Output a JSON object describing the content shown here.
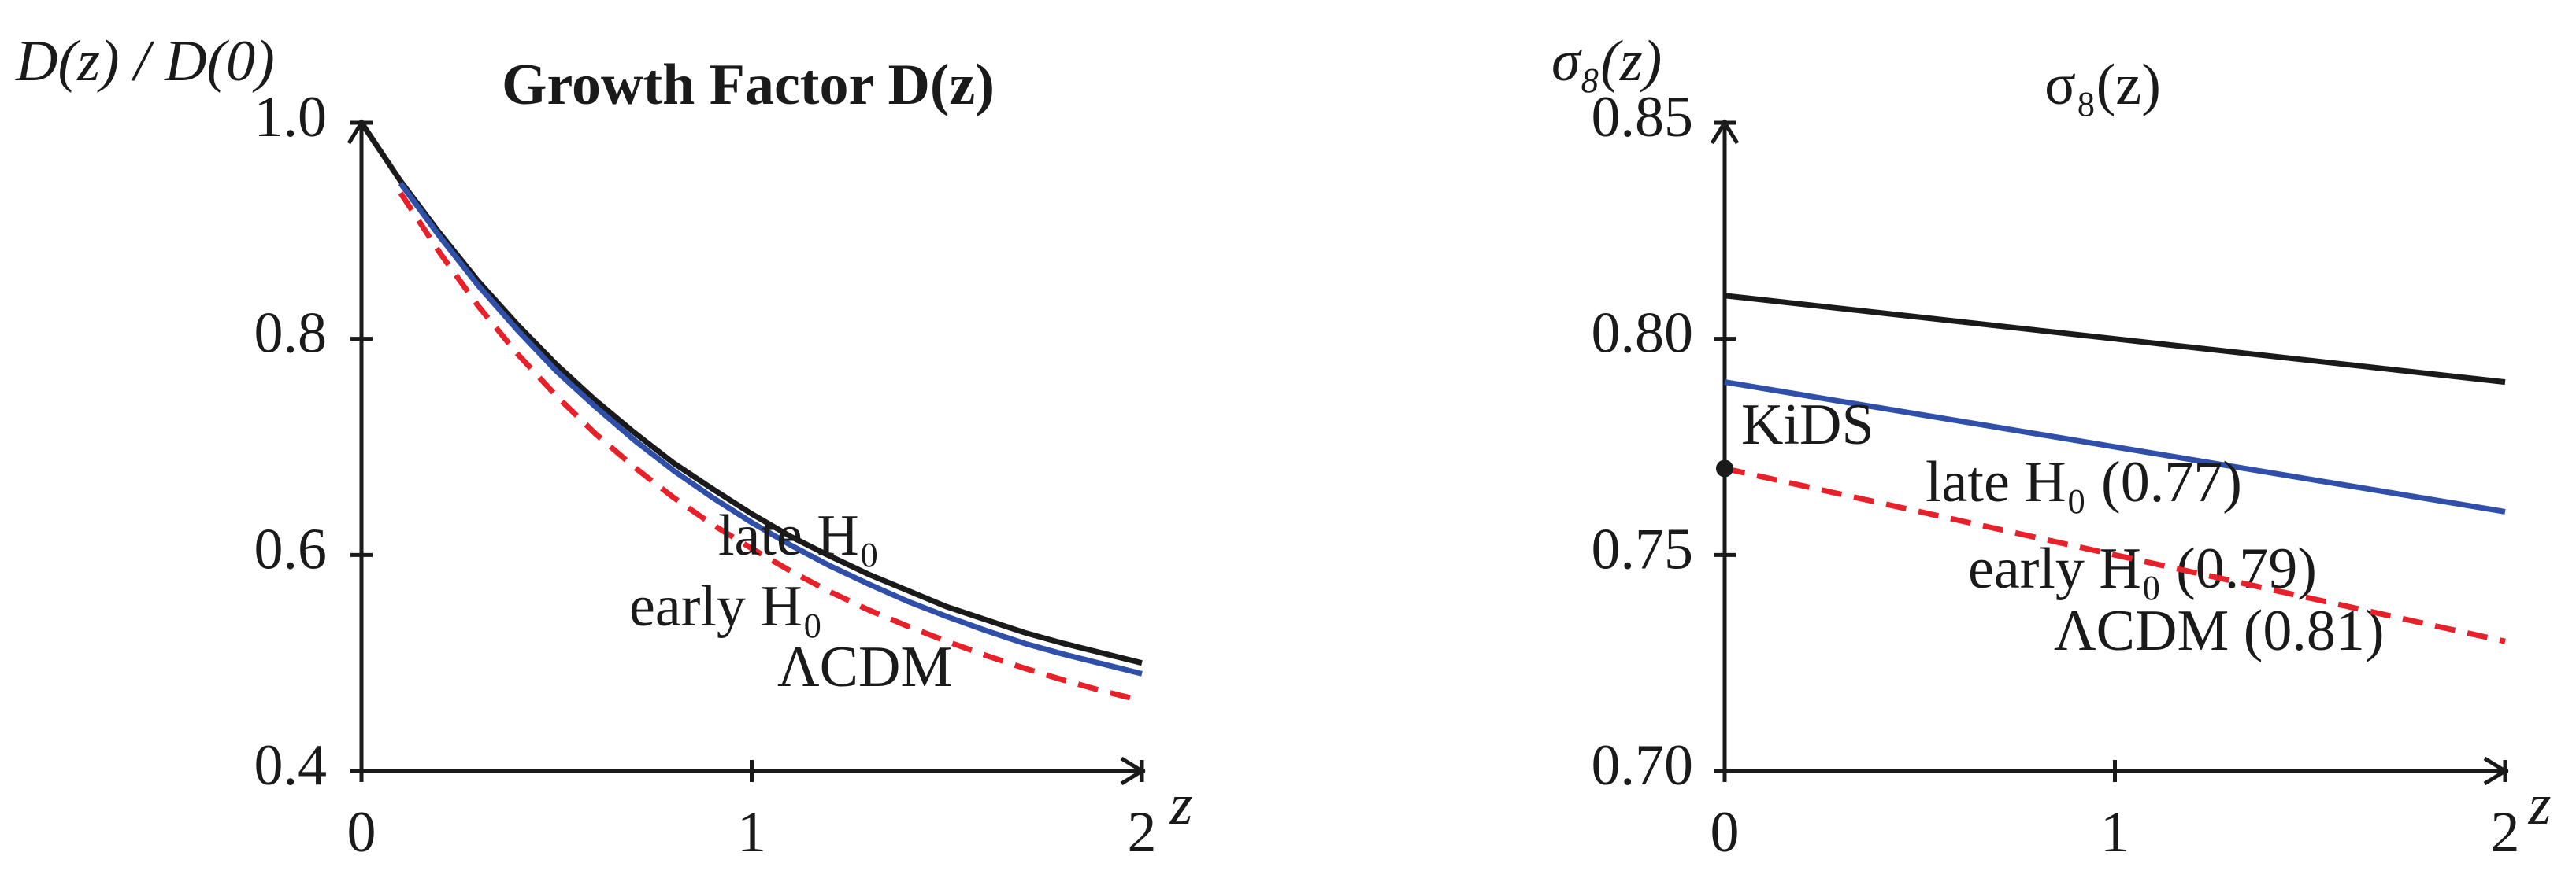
{
  "chart_data": [
    {
      "type": "line",
      "title": "Growth Factor D(z)",
      "y_label": "D(z) / D(0)",
      "x_label": "z",
      "x": [
        0,
        0.1,
        0.2,
        0.3,
        0.4,
        0.5,
        0.6,
        0.7,
        0.8,
        0.9,
        1.0,
        1.1,
        1.2,
        1.3,
        1.4,
        1.5,
        1.6,
        1.7,
        1.8,
        1.9,
        2.0
      ],
      "series": [
        {
          "name": "ΛCDM",
          "color": "#1a1a1a",
          "dashed": false,
          "values": [
            1.0,
            0.946,
            0.898,
            0.853,
            0.813,
            0.776,
            0.743,
            0.713,
            0.685,
            0.661,
            0.638,
            0.617,
            0.599,
            0.582,
            0.567,
            0.552,
            0.54,
            0.528,
            0.518,
            0.509,
            0.5
          ]
        },
        {
          "name": "early H₀",
          "color": "#2f4fa8",
          "dashed": false,
          "values": [
            null,
            0.944,
            0.895,
            0.849,
            0.808,
            0.77,
            0.737,
            0.706,
            0.678,
            0.653,
            0.63,
            0.609,
            0.59,
            0.573,
            0.557,
            0.543,
            0.53,
            0.518,
            0.508,
            0.499,
            0.49
          ]
        },
        {
          "name": "late H₀",
          "color": "#e8202a",
          "dashed": true,
          "values": [
            null,
            0.935,
            0.88,
            0.83,
            0.786,
            0.747,
            0.712,
            0.681,
            0.653,
            0.628,
            0.606,
            0.585,
            0.566,
            0.549,
            0.534,
            0.52,
            0.507,
            0.495,
            0.484,
            0.474,
            0.465
          ]
        }
      ],
      "xlim": [
        0,
        2
      ],
      "ylim": [
        0.4,
        1
      ],
      "xticks": [
        0,
        1,
        2
      ],
      "yticks": [
        0.4,
        0.6,
        0.8,
        {
          "value": 1,
          "label": "1.0"
        }
      ]
    },
    {
      "type": "line",
      "title": "σ₈(z)",
      "y_label": "σ₈(z)",
      "x_label": "z",
      "x": [
        0,
        2
      ],
      "series": [
        {
          "name": "ΛCDM (0.81)",
          "color": "#1a1a1a",
          "dashed": false,
          "values": [
            0.81,
            0.79
          ]
        },
        {
          "name": "early H₀ (0.79)",
          "color": "#2f4fa8",
          "dashed": false,
          "values": [
            0.79,
            0.76
          ]
        },
        {
          "name": "late H₀ (0.77)",
          "color": "#e8202a",
          "dashed": true,
          "values": [
            0.77,
            0.73
          ]
        }
      ],
      "marker": {
        "label": "KiDS",
        "x": 0,
        "y": 0.77
      },
      "xlim": [
        0,
        2
      ],
      "ylim": [
        0.7,
        0.85
      ],
      "xticks": [
        0,
        1,
        2
      ],
      "yticks": [
        {
          "value": 0.7,
          "label": "0.70"
        },
        0.75,
        {
          "value": 0.8,
          "label": "0.80"
        },
        0.85
      ]
    }
  ]
}
